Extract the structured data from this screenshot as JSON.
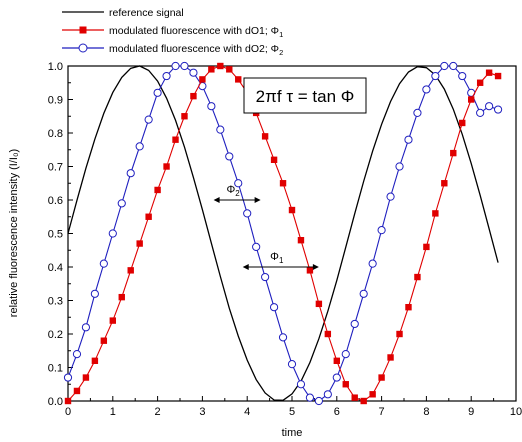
{
  "chart_data": {
    "type": "line",
    "xlabel": "time",
    "ylabel": "relative fluorescence intensity (I/I₀)",
    "xlim": [
      0,
      10
    ],
    "ylim": [
      0,
      1
    ],
    "xticks": [
      "0",
      "1",
      "2",
      "3",
      "4",
      "5",
      "6",
      "7",
      "8",
      "9",
      "10"
    ],
    "yticks": [
      "0.0",
      "0.1",
      "0.2",
      "0.3",
      "0.4",
      "0.5",
      "0.6",
      "0.7",
      "0.8",
      "0.9",
      "1.0"
    ],
    "grid": false,
    "legend_position": "top-left outside",
    "series": [
      {
        "name": "reference signal",
        "color": "#000000",
        "marker": "none",
        "x": [
          0.0,
          0.2,
          0.4,
          0.6,
          0.8,
          1.0,
          1.2,
          1.4,
          1.6,
          1.8,
          2.0,
          2.2,
          2.4,
          2.6,
          2.8,
          3.0,
          3.2,
          3.4,
          3.6,
          3.8,
          4.0,
          4.2,
          4.4,
          4.6,
          4.8,
          5.0,
          5.2,
          5.4,
          5.6,
          5.8,
          6.0,
          6.2,
          6.4,
          6.6,
          6.8,
          7.0,
          7.2,
          7.4,
          7.6,
          7.8,
          8.0,
          8.2,
          8.4,
          8.6,
          8.8,
          9.0,
          9.2,
          9.4,
          9.6
        ],
        "y": [
          0.5,
          0.599,
          0.695,
          0.782,
          0.859,
          0.921,
          0.966,
          0.993,
          1.0,
          0.987,
          0.955,
          0.904,
          0.838,
          0.758,
          0.667,
          0.571,
          0.471,
          0.372,
          0.277,
          0.194,
          0.122,
          0.064,
          0.024,
          0.003,
          0.002,
          0.021,
          0.059,
          0.115,
          0.186,
          0.268,
          0.36,
          0.459,
          0.559,
          0.656,
          0.746,
          0.826,
          0.894,
          0.947,
          0.982,
          0.998,
          0.995,
          0.973,
          0.931,
          0.871,
          0.796,
          0.709,
          0.614,
          0.514,
          0.413
        ]
      },
      {
        "name": "modulated fluorescence with dO1; Φ",
        "name_subscript": "1",
        "color": "#e00000",
        "marker": "filled-square",
        "x": [
          0.0,
          0.2,
          0.4,
          0.6,
          0.8,
          1.0,
          1.2,
          1.4,
          1.6,
          1.8,
          2.0,
          2.2,
          2.4,
          2.6,
          2.8,
          3.0,
          3.2,
          3.4,
          3.6,
          3.8,
          4.0,
          4.2,
          4.4,
          4.6,
          4.8,
          5.0,
          5.2,
          5.4,
          5.6,
          5.8,
          6.0,
          6.2,
          6.4,
          6.6,
          6.8,
          7.0,
          7.2,
          7.4,
          7.6,
          7.8,
          8.0,
          8.2,
          8.4,
          8.6,
          8.8,
          9.0,
          9.2,
          9.4,
          9.6
        ],
        "y": [
          0.0,
          0.03,
          0.07,
          0.12,
          0.18,
          0.24,
          0.31,
          0.39,
          0.47,
          0.55,
          0.63,
          0.7,
          0.78,
          0.85,
          0.91,
          0.96,
          0.99,
          1.0,
          0.99,
          0.96,
          0.92,
          0.86,
          0.79,
          0.72,
          0.65,
          0.57,
          0.48,
          0.39,
          0.29,
          0.2,
          0.12,
          0.05,
          0.01,
          0.0,
          0.02,
          0.07,
          0.13,
          0.2,
          0.28,
          0.37,
          0.46,
          0.56,
          0.65,
          0.74,
          0.83,
          0.9,
          0.95,
          0.98,
          0.97
        ]
      },
      {
        "name": "modulated fluorescence with dO2; Φ",
        "name_subscript": "2",
        "color": "#1f1fbf",
        "marker": "open-circle",
        "x": [
          0.0,
          0.2,
          0.4,
          0.6,
          0.8,
          1.0,
          1.2,
          1.4,
          1.6,
          1.8,
          2.0,
          2.2,
          2.4,
          2.6,
          2.8,
          3.0,
          3.2,
          3.4,
          3.6,
          3.8,
          4.0,
          4.2,
          4.4,
          4.6,
          4.8,
          5.0,
          5.2,
          5.4,
          5.6,
          5.8,
          6.0,
          6.2,
          6.4,
          6.6,
          6.8,
          7.0,
          7.2,
          7.4,
          7.6,
          7.8,
          8.0,
          8.2,
          8.4,
          8.6,
          8.8,
          9.0,
          9.2,
          9.4,
          9.6
        ],
        "y": [
          0.07,
          0.14,
          0.22,
          0.32,
          0.41,
          0.5,
          0.59,
          0.68,
          0.76,
          0.84,
          0.92,
          0.97,
          1.0,
          1.0,
          0.98,
          0.94,
          0.88,
          0.81,
          0.73,
          0.65,
          0.56,
          0.46,
          0.37,
          0.28,
          0.19,
          0.11,
          0.05,
          0.01,
          0.0,
          0.02,
          0.07,
          0.14,
          0.23,
          0.32,
          0.41,
          0.51,
          0.61,
          0.7,
          0.78,
          0.86,
          0.93,
          0.97,
          1.0,
          1.0,
          0.97,
          0.92,
          0.86,
          0.88,
          0.87
        ]
      }
    ],
    "annotations": [
      {
        "label": "Φ",
        "subscript": "2",
        "arrow_from": [
          3.25,
          0.6
        ],
        "arrow_to": [
          4.3,
          0.6
        ]
      },
      {
        "label": "Φ",
        "subscript": "1",
        "arrow_from": [
          3.9,
          0.4
        ],
        "arrow_to": [
          5.6,
          0.4
        ]
      }
    ],
    "formula_box": {
      "part1": "2",
      "pi": "π",
      "part2": "f ",
      "tau": "τ",
      "part3": " = tan ",
      "phi": "Φ"
    }
  }
}
